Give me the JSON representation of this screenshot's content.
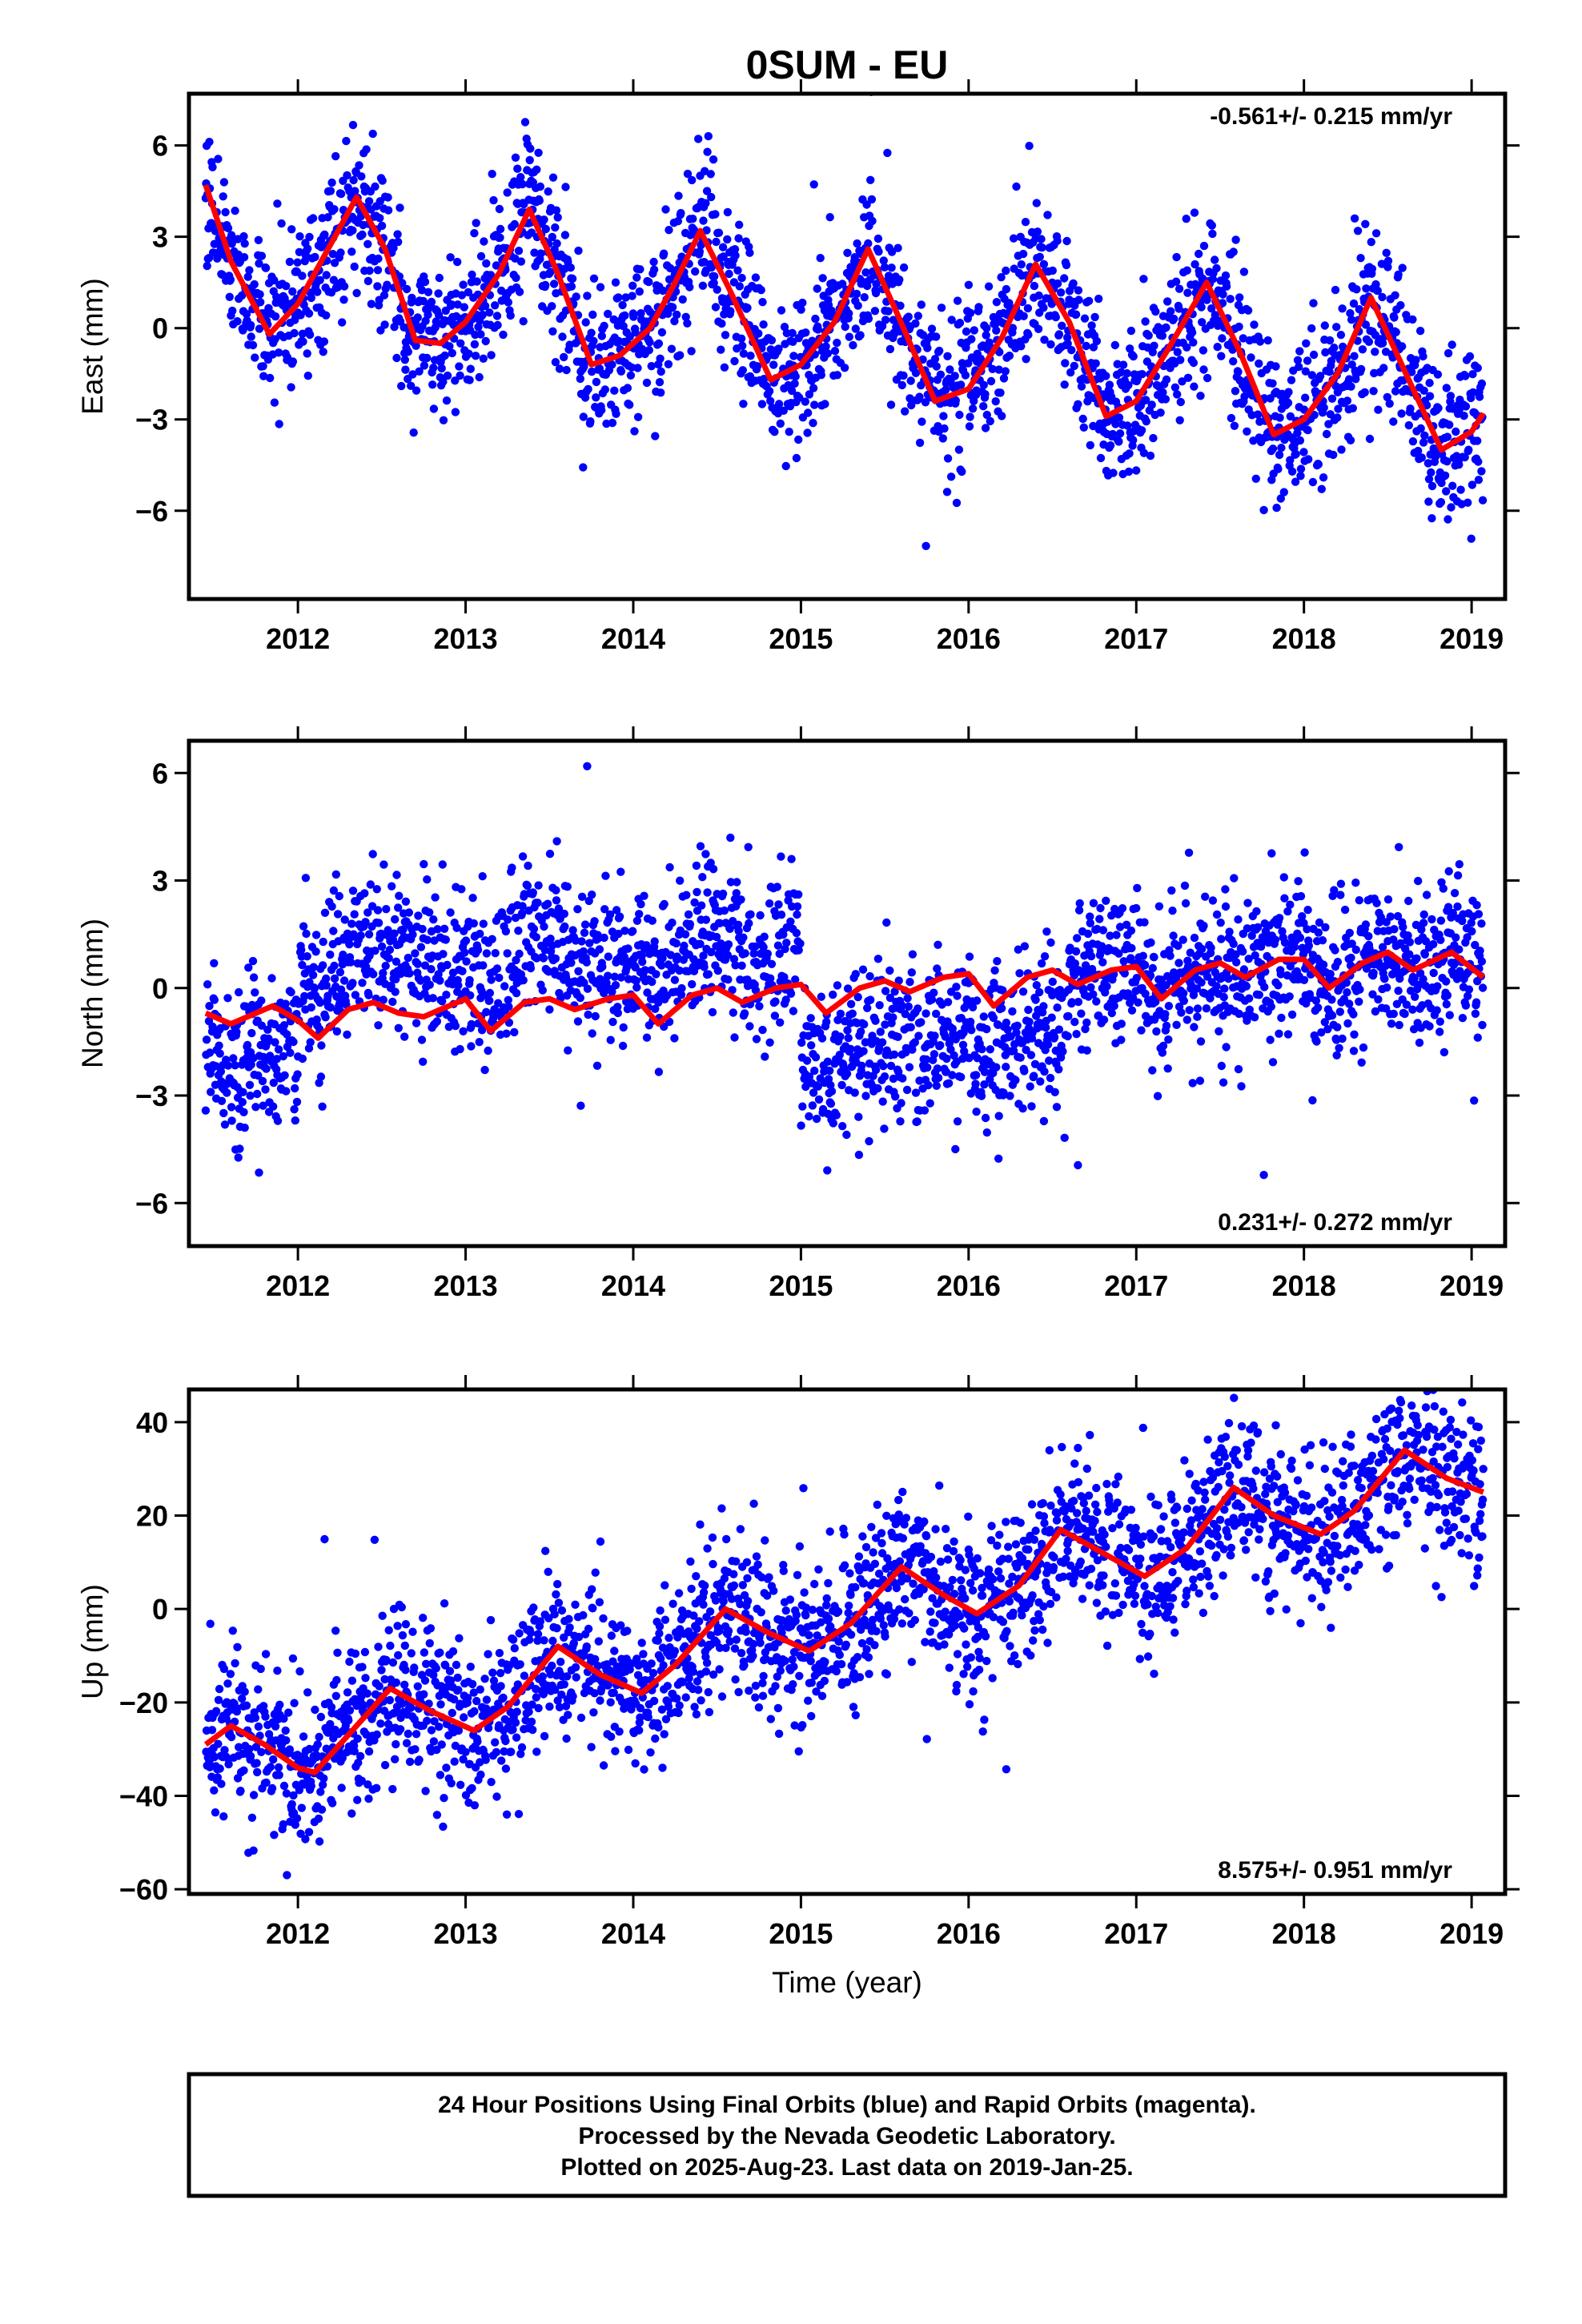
{
  "figure": {
    "title": "0SUM - EU",
    "xlabel": "Time (year)",
    "caption": [
      "24 Hour Positions Using Final Orbits (blue) and Rapid Orbits (magenta).",
      "Processed by the Nevada Geodetic Laboratory.",
      "Plotted on 2025-Aug-23. Last data on 2019-Jan-25."
    ],
    "colors": {
      "points": "#0000ff",
      "fit": "#ff0000",
      "frame": "#000000"
    }
  },
  "chart_data": [
    {
      "type": "scatter",
      "component": "east",
      "ylabel": "East (mm)",
      "rate_label": "-0.561+/- 0.215 mm/yr",
      "rate_position": "top-right",
      "xlim": [
        2011.35,
        2019.2
      ],
      "ylim": [
        -8.9,
        7.7
      ],
      "xticks": [
        2012,
        2013,
        2014,
        2015,
        2016,
        2017,
        2018,
        2019
      ],
      "yticks": [
        -6,
        -3,
        0,
        3,
        6
      ],
      "points_color": "#0000ff",
      "fit_color": "#ff0000",
      "trend_rate": -0.561,
      "seasonal": {
        "annual_amplitude": 2.6,
        "semiannual_amplitude": 0.5,
        "peak_fraction": 0.38
      },
      "fit_points": [
        [
          2011.45,
          4.7
        ],
        [
          2011.6,
          2.2
        ],
        [
          2011.83,
          -0.2
        ],
        [
          2012.0,
          0.8
        ],
        [
          2012.15,
          2.3
        ],
        [
          2012.35,
          4.3
        ],
        [
          2012.52,
          2.6
        ],
        [
          2012.7,
          -0.4
        ],
        [
          2012.85,
          -0.5
        ],
        [
          2013.0,
          0.2
        ],
        [
          2013.2,
          1.8
        ],
        [
          2013.38,
          3.9
        ],
        [
          2013.55,
          1.8
        ],
        [
          2013.75,
          -1.2
        ],
        [
          2013.92,
          -0.9
        ],
        [
          2014.1,
          0.0
        ],
        [
          2014.25,
          1.5
        ],
        [
          2014.4,
          3.2
        ],
        [
          2014.58,
          1.2
        ],
        [
          2014.82,
          -1.7
        ],
        [
          2015.0,
          -1.2
        ],
        [
          2015.2,
          0.2
        ],
        [
          2015.4,
          2.6
        ],
        [
          2015.58,
          0.4
        ],
        [
          2015.8,
          -2.4
        ],
        [
          2016.0,
          -2.0
        ],
        [
          2016.2,
          -0.3
        ],
        [
          2016.4,
          2.1
        ],
        [
          2016.6,
          0.2
        ],
        [
          2016.82,
          -2.9
        ],
        [
          2017.0,
          -2.4
        ],
        [
          2017.2,
          -0.6
        ],
        [
          2017.42,
          1.5
        ],
        [
          2017.62,
          -0.8
        ],
        [
          2017.82,
          -3.5
        ],
        [
          2018.0,
          -3.0
        ],
        [
          2018.2,
          -1.5
        ],
        [
          2018.4,
          1.0
        ],
        [
          2018.6,
          -1.4
        ],
        [
          2018.82,
          -4.0
        ],
        [
          2019.0,
          -3.4
        ],
        [
          2019.07,
          -2.8
        ]
      ]
    },
    {
      "type": "scatter",
      "component": "north",
      "ylabel": "North (mm)",
      "rate_label": "0.231+/- 0.272 mm/yr",
      "rate_position": "bottom-right",
      "xlim": [
        2011.35,
        2019.2
      ],
      "ylim": [
        -7.2,
        6.9
      ],
      "xticks": [
        2012,
        2013,
        2014,
        2015,
        2016,
        2017,
        2018,
        2019
      ],
      "yticks": [
        -6,
        -3,
        0,
        3,
        6
      ],
      "points_color": "#0000ff",
      "fit_color": "#ff0000",
      "trend_rate": 0.231,
      "seasonal": {
        "annual_amplitude": 0.35,
        "semiannual_amplitude": 0.15,
        "peak_fraction": 0.5
      },
      "fit_points": [
        [
          2011.45,
          -0.7
        ],
        [
          2011.6,
          -1.0
        ],
        [
          2011.85,
          -0.5
        ],
        [
          2012.0,
          -0.9
        ],
        [
          2012.12,
          -1.4
        ],
        [
          2012.3,
          -0.6
        ],
        [
          2012.45,
          -0.4
        ],
        [
          2012.6,
          -0.7
        ],
        [
          2012.75,
          -0.8
        ],
        [
          2012.9,
          -0.5
        ],
        [
          2013.0,
          -0.3
        ],
        [
          2013.15,
          -1.2
        ],
        [
          2013.35,
          -0.4
        ],
        [
          2013.5,
          -0.3
        ],
        [
          2013.65,
          -0.6
        ],
        [
          2013.85,
          -0.3
        ],
        [
          2014.0,
          -0.2
        ],
        [
          2014.15,
          -1.0
        ],
        [
          2014.35,
          -0.2
        ],
        [
          2014.5,
          0.0
        ],
        [
          2014.65,
          -0.4
        ],
        [
          2014.85,
          0.0
        ],
        [
          2015.0,
          0.1
        ],
        [
          2015.15,
          -0.7
        ],
        [
          2015.35,
          0.0
        ],
        [
          2015.5,
          0.2
        ],
        [
          2015.65,
          -0.1
        ],
        [
          2015.85,
          0.3
        ],
        [
          2016.0,
          0.4
        ],
        [
          2016.15,
          -0.5
        ],
        [
          2016.35,
          0.3
        ],
        [
          2016.5,
          0.5
        ],
        [
          2016.65,
          0.1
        ],
        [
          2016.85,
          0.5
        ],
        [
          2017.0,
          0.6
        ],
        [
          2017.15,
          -0.3
        ],
        [
          2017.35,
          0.5
        ],
        [
          2017.5,
          0.7
        ],
        [
          2017.65,
          0.3
        ],
        [
          2017.85,
          0.8
        ],
        [
          2018.0,
          0.8
        ],
        [
          2018.15,
          0.0
        ],
        [
          2018.35,
          0.7
        ],
        [
          2018.5,
          1.0
        ],
        [
          2018.65,
          0.5
        ],
        [
          2018.88,
          1.0
        ],
        [
          2019.07,
          0.3
        ]
      ]
    },
    {
      "type": "scatter",
      "component": "up",
      "ylabel": "Up (mm)",
      "rate_label": "8.575+/- 0.951 mm/yr",
      "rate_position": "bottom-right",
      "xlim": [
        2011.35,
        2019.2
      ],
      "ylim": [
        -61,
        47
      ],
      "xticks": [
        2012,
        2013,
        2014,
        2015,
        2016,
        2017,
        2018,
        2019
      ],
      "yticks": [
        -60,
        -40,
        -20,
        0,
        20,
        40
      ],
      "points_color": "#0000ff",
      "fit_color": "#ff0000",
      "trend_rate": 8.575,
      "seasonal": {
        "annual_amplitude": 6.5,
        "semiannual_amplitude": 1.2,
        "peak_fraction": 0.6
      },
      "fit_points": [
        [
          2011.45,
          -29
        ],
        [
          2011.6,
          -25
        ],
        [
          2011.8,
          -29
        ],
        [
          2012.0,
          -34
        ],
        [
          2012.1,
          -35
        ],
        [
          2012.3,
          -27
        ],
        [
          2012.55,
          -17
        ],
        [
          2012.8,
          -22
        ],
        [
          2013.05,
          -26
        ],
        [
          2013.25,
          -21
        ],
        [
          2013.55,
          -8
        ],
        [
          2013.8,
          -14
        ],
        [
          2014.05,
          -18
        ],
        [
          2014.25,
          -12
        ],
        [
          2014.55,
          0
        ],
        [
          2014.8,
          -5
        ],
        [
          2015.05,
          -9
        ],
        [
          2015.3,
          -3
        ],
        [
          2015.6,
          9
        ],
        [
          2015.85,
          3
        ],
        [
          2016.05,
          -1
        ],
        [
          2016.3,
          5
        ],
        [
          2016.55,
          17
        ],
        [
          2016.8,
          12
        ],
        [
          2017.05,
          7
        ],
        [
          2017.3,
          13
        ],
        [
          2017.58,
          26
        ],
        [
          2017.82,
          20
        ],
        [
          2018.1,
          16
        ],
        [
          2018.3,
          21
        ],
        [
          2018.6,
          34
        ],
        [
          2018.85,
          28
        ],
        [
          2019.07,
          25
        ]
      ]
    }
  ]
}
